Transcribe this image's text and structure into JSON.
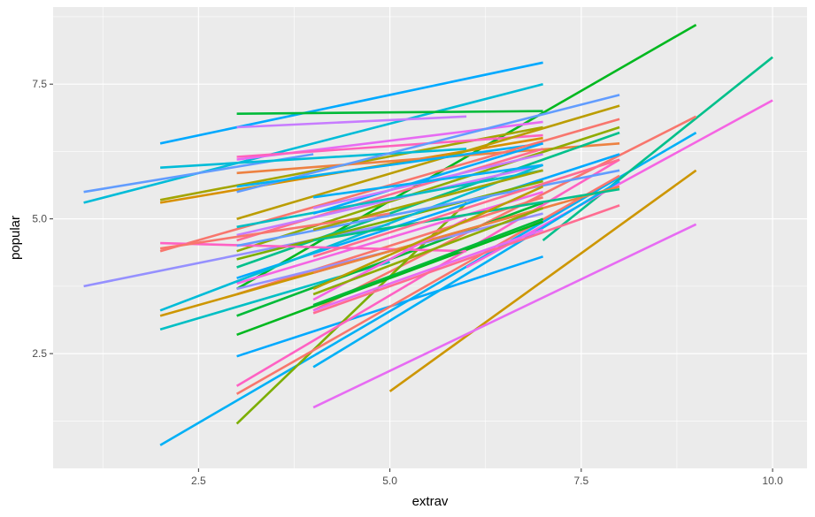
{
  "chart_data": {
    "type": "line",
    "xlabel": "extrav",
    "ylabel": "popular",
    "xlim": [
      0.6,
      10.45
    ],
    "ylim": [
      0.37,
      8.93
    ],
    "x_ticks": [
      2.5,
      5.0,
      7.5,
      10.0
    ],
    "x_tick_labels": [
      "2.5",
      "5.0",
      "7.5",
      "10.0"
    ],
    "y_ticks": [
      2.5,
      5.0,
      7.5
    ],
    "y_tick_labels": [
      "2.5",
      "5.0",
      "7.5"
    ],
    "grid": true,
    "legend": "none",
    "background_color": "#ebebeb",
    "series": [
      {
        "color": "#00b0f6",
        "x": [
          2,
          9
        ],
        "y": [
          0.8,
          6.6
        ]
      },
      {
        "color": "#00c08b",
        "x": [
          7,
          10
        ],
        "y": [
          4.6,
          8.0
        ]
      },
      {
        "color": "#00b81f",
        "x": [
          3,
          9
        ],
        "y": [
          3.7,
          8.6
        ]
      },
      {
        "color": "#f8766d",
        "x": [
          4,
          9
        ],
        "y": [
          3.3,
          6.9
        ]
      },
      {
        "color": "#f564e3",
        "x": [
          6,
          10
        ],
        "y": [
          4.1,
          7.2
        ]
      },
      {
        "color": "#cd9600",
        "x": [
          5,
          9
        ],
        "y": [
          1.8,
          5.9
        ]
      },
      {
        "color": "#e76bf3",
        "x": [
          4,
          9
        ],
        "y": [
          1.5,
          4.9
        ]
      },
      {
        "color": "#00a9ff",
        "x": [
          2,
          7
        ],
        "y": [
          6.4,
          7.9
        ]
      },
      {
        "color": "#00bcd8",
        "x": [
          1,
          7
        ],
        "y": [
          5.3,
          7.5
        ]
      },
      {
        "color": "#619cff",
        "x": [
          1,
          4
        ],
        "y": [
          5.5,
          6.2
        ]
      },
      {
        "color": "#00ba38",
        "x": [
          3,
          7
        ],
        "y": [
          6.95,
          7.0
        ]
      },
      {
        "color": "#c77cff",
        "x": [
          3,
          6
        ],
        "y": [
          6.7,
          6.9
        ]
      },
      {
        "color": "#9590ff",
        "x": [
          1,
          5
        ],
        "y": [
          3.75,
          4.9
        ]
      },
      {
        "color": "#00bfc4",
        "x": [
          2,
          5
        ],
        "y": [
          2.95,
          4.2
        ]
      },
      {
        "color": "#00a9ff",
        "x": [
          3,
          7
        ],
        "y": [
          2.45,
          4.3
        ]
      },
      {
        "color": "#7cae00",
        "x": [
          3,
          6
        ],
        "y": [
          1.2,
          5.3
        ]
      },
      {
        "color": "#ff61c3",
        "x": [
          3,
          8
        ],
        "y": [
          1.9,
          6.1
        ]
      },
      {
        "color": "#f8766d",
        "x": [
          3,
          8
        ],
        "y": [
          1.75,
          5.8
        ]
      },
      {
        "color": "#00b0f6",
        "x": [
          4,
          8
        ],
        "y": [
          2.25,
          5.7
        ]
      },
      {
        "color": "#ff6c91",
        "x": [
          4,
          8
        ],
        "y": [
          3.25,
          5.25
        ]
      },
      {
        "color": "#a3a500",
        "x": [
          2,
          7
        ],
        "y": [
          5.35,
          6.7
        ]
      },
      {
        "color": "#d89000",
        "x": [
          2,
          7
        ],
        "y": [
          5.3,
          6.5
        ]
      },
      {
        "color": "#00bcd8",
        "x": [
          2,
          6
        ],
        "y": [
          5.95,
          6.3
        ]
      },
      {
        "color": "#e76bf3",
        "x": [
          3,
          7
        ],
        "y": [
          6.1,
          6.8
        ]
      },
      {
        "color": "#ff62bc",
        "x": [
          3,
          7
        ],
        "y": [
          6.15,
          6.55
        ]
      },
      {
        "color": "#ed8141",
        "x": [
          3,
          8
        ],
        "y": [
          5.85,
          6.4
        ]
      },
      {
        "color": "#619cff",
        "x": [
          3,
          8
        ],
        "y": [
          5.5,
          7.3
        ]
      },
      {
        "color": "#bb9d00",
        "x": [
          3,
          8
        ],
        "y": [
          5.0,
          7.1
        ]
      },
      {
        "color": "#00b0f6",
        "x": [
          3,
          7
        ],
        "y": [
          5.6,
          6.4
        ]
      },
      {
        "color": "#f8766d",
        "x": [
          2,
          8
        ],
        "y": [
          4.4,
          6.85
        ]
      },
      {
        "color": "#8fab00",
        "x": [
          3,
          8
        ],
        "y": [
          4.4,
          6.7
        ]
      },
      {
        "color": "#00c08b",
        "x": [
          3,
          8
        ],
        "y": [
          4.1,
          6.6
        ]
      },
      {
        "color": "#00a9ff",
        "x": [
          3,
          8
        ],
        "y": [
          3.9,
          6.2
        ]
      },
      {
        "color": "#ff6c91",
        "x": [
          3,
          7
        ],
        "y": [
          4.6,
          6.3
        ]
      },
      {
        "color": "#c77cff",
        "x": [
          3,
          7
        ],
        "y": [
          4.7,
          6.0
        ]
      },
      {
        "color": "#00bfc4",
        "x": [
          3,
          7
        ],
        "y": [
          4.85,
          5.9
        ]
      },
      {
        "color": "#7cae00",
        "x": [
          3,
          7
        ],
        "y": [
          4.25,
          5.7
        ]
      },
      {
        "color": "#f564e3",
        "x": [
          3,
          7
        ],
        "y": [
          3.8,
          5.5
        ]
      },
      {
        "color": "#f8766d",
        "x": [
          3,
          7
        ],
        "y": [
          3.6,
          5.4
        ]
      },
      {
        "color": "#00ba38",
        "x": [
          3,
          7
        ],
        "y": [
          3.2,
          5.3
        ]
      },
      {
        "color": "#9590ff",
        "x": [
          3,
          7
        ],
        "y": [
          3.7,
          5.1
        ]
      },
      {
        "color": "#cd9600",
        "x": [
          2,
          7
        ],
        "y": [
          3.2,
          5.2
        ]
      },
      {
        "color": "#00bcd8",
        "x": [
          2,
          7
        ],
        "y": [
          3.3,
          6.0
        ]
      },
      {
        "color": "#00b81f",
        "x": [
          3,
          7
        ],
        "y": [
          2.85,
          4.95
        ]
      },
      {
        "color": "#ff61c3",
        "x": [
          2,
          6
        ],
        "y": [
          4.55,
          4.4
        ]
      },
      {
        "color": "#f8766d",
        "x": [
          2,
          5
        ],
        "y": [
          4.45,
          5.1
        ]
      },
      {
        "color": "#619cff",
        "x": [
          3,
          8
        ],
        "y": [
          4.5,
          5.9
        ]
      },
      {
        "color": "#e76bf3",
        "x": [
          4,
          7
        ],
        "y": [
          3.3,
          4.8
        ]
      },
      {
        "color": "#ed8141",
        "x": [
          4,
          8
        ],
        "y": [
          4.0,
          5.6
        ]
      },
      {
        "color": "#00c08b",
        "x": [
          4,
          8
        ],
        "y": [
          4.6,
          5.55
        ]
      },
      {
        "color": "#ff6c91",
        "x": [
          4,
          8
        ],
        "y": [
          4.3,
          6.1
        ]
      },
      {
        "color": "#a3a500",
        "x": [
          4,
          7
        ],
        "y": [
          4.8,
          5.9
        ]
      },
      {
        "color": "#00a9ff",
        "x": [
          4,
          7
        ],
        "y": [
          5.1,
          6.4
        ]
      },
      {
        "color": "#c77cff",
        "x": [
          4,
          7
        ],
        "y": [
          5.2,
          6.2
        ]
      },
      {
        "color": "#00b0f6",
        "x": [
          4,
          7
        ],
        "y": [
          5.4,
          6.0
        ]
      },
      {
        "color": "#f564e3",
        "x": [
          4,
          6
        ],
        "y": [
          3.5,
          5.0
        ]
      },
      {
        "color": "#00ba38",
        "x": [
          4,
          7
        ],
        "y": [
          3.4,
          5.0
        ]
      },
      {
        "color": "#bb9d00",
        "x": [
          4,
          7
        ],
        "y": [
          3.7,
          5.6
        ]
      },
      {
        "color": "#8fab00",
        "x": [
          4,
          7
        ],
        "y": [
          3.6,
          5.2
        ]
      }
    ]
  }
}
